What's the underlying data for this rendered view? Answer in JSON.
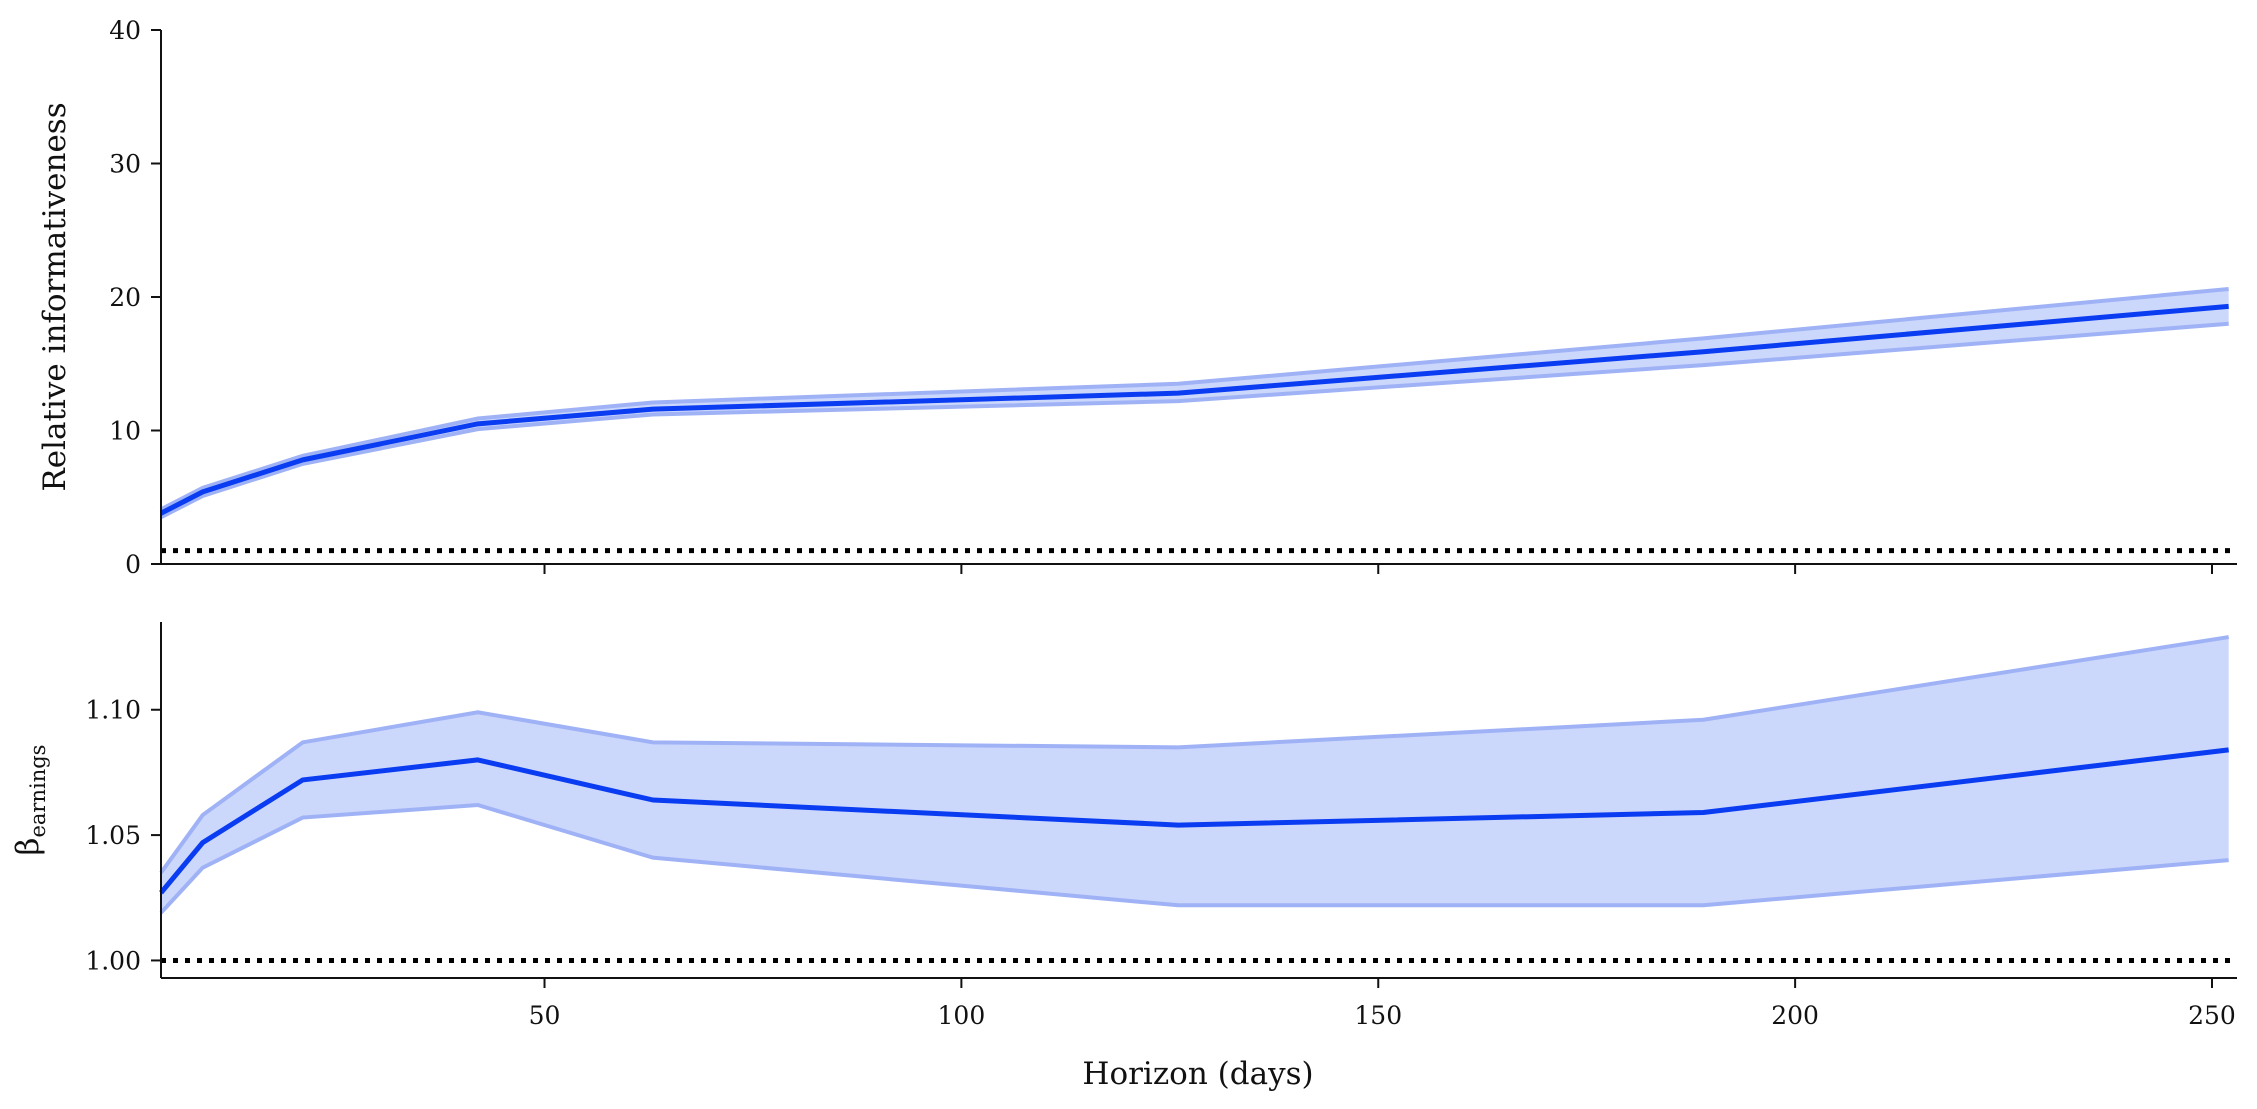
{
  "chart_data": [
    {
      "type": "line",
      "ylabel": "Relative informativeness",
      "xlim": [
        4,
        253
      ],
      "ylim": [
        0,
        40
      ],
      "yticks": [
        0,
        10,
        20,
        30,
        40
      ],
      "xticks": [
        50,
        100,
        150,
        200,
        250
      ],
      "reference_line": 1,
      "grid": false,
      "series": [
        {
          "x": [
            4,
            9,
            21,
            42,
            63,
            126,
            189,
            252
          ],
          "values": [
            3.8,
            5.4,
            7.8,
            10.5,
            11.6,
            12.8,
            15.9,
            19.3
          ],
          "lower": [
            3.5,
            5.1,
            7.5,
            10.1,
            11.2,
            12.2,
            14.9,
            18.0
          ],
          "upper": [
            4.1,
            5.7,
            8.1,
            10.9,
            12.1,
            13.5,
            16.9,
            20.6
          ]
        }
      ]
    },
    {
      "type": "line",
      "ylabel": "β",
      "ylabel_sub": "earnings",
      "xlabel": "Horizon (days)",
      "xlim": [
        4,
        253
      ],
      "ylim": [
        0.993,
        1.135
      ],
      "yticks": [
        "1.00",
        "1.05",
        "1.10"
      ],
      "xticks": [
        "50",
        "100",
        "150",
        "200",
        "250"
      ],
      "reference_line": 1.0,
      "grid": false,
      "series": [
        {
          "x": [
            4,
            9,
            21,
            42,
            63,
            126,
            189,
            252
          ],
          "values": [
            1.027,
            1.047,
            1.072,
            1.08,
            1.064,
            1.054,
            1.059,
            1.084
          ],
          "lower": [
            1.019,
            1.037,
            1.057,
            1.062,
            1.041,
            1.022,
            1.022,
            1.04
          ],
          "upper": [
            1.035,
            1.058,
            1.087,
            1.099,
            1.087,
            1.085,
            1.096,
            1.129
          ]
        }
      ]
    }
  ],
  "colors": {
    "line": "#0a3cf2",
    "band": "#ccd7fc",
    "band_edge": "#9fb2f6",
    "axis": "#111111",
    "reference": "#000000"
  }
}
